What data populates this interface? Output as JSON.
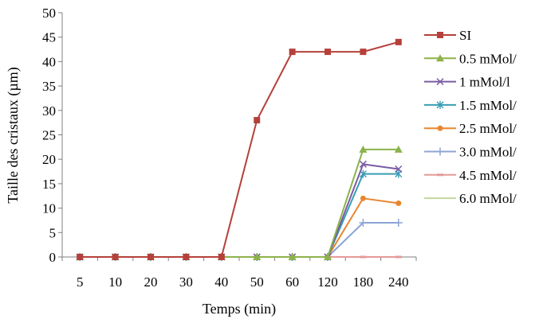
{
  "chart_data": {
    "type": "line",
    "title": "",
    "xlabel": "Temps (min)",
    "ylabel": "Taille des cristaux (µm)",
    "categories": [
      "5",
      "10",
      "20",
      "30",
      "40",
      "50",
      "60",
      "120",
      "180",
      "240"
    ],
    "ylim": [
      0,
      50
    ],
    "yticks": [
      0,
      5,
      10,
      15,
      20,
      25,
      30,
      35,
      40,
      45,
      50
    ],
    "grid": false,
    "legend_position": "right",
    "series": [
      {
        "name": "SI",
        "color": "#b5403a",
        "marker": "square",
        "values": [
          0,
          0,
          0,
          0,
          0,
          28,
          42,
          42,
          42,
          44
        ]
      },
      {
        "name": "0.5 mMol/",
        "color": "#8cb24a",
        "marker": "triangle",
        "values": [
          0,
          0,
          0,
          0,
          0,
          0,
          0,
          0,
          22,
          22
        ]
      },
      {
        "name": "1 mMol/l",
        "color": "#7a5ba3",
        "marker": "x",
        "values": [
          0,
          0,
          0,
          0,
          0,
          0,
          0,
          0,
          19,
          18
        ]
      },
      {
        "name": "1.5 mMol/",
        "color": "#3a9db5",
        "marker": "star",
        "values": [
          0,
          0,
          0,
          0,
          0,
          0,
          0,
          0,
          17,
          17
        ]
      },
      {
        "name": "2.5 mMol/",
        "color": "#e8862f",
        "marker": "circle",
        "values": [
          0,
          0,
          0,
          0,
          0,
          0,
          0,
          0,
          12,
          11
        ]
      },
      {
        "name": "3.0 mMol/",
        "color": "#8da4d4",
        "marker": "plus",
        "values": [
          0,
          0,
          0,
          0,
          0,
          0,
          0,
          0,
          7,
          7
        ]
      },
      {
        "name": "4.5 mMol/",
        "color": "#e59a98",
        "marker": "dash",
        "values": [
          0,
          0,
          0,
          0,
          0,
          0,
          0,
          0,
          0,
          0
        ]
      },
      {
        "name": "6.0 mMol/",
        "color": "#c3d69b",
        "marker": "line",
        "values": [
          0,
          0,
          0,
          0,
          0,
          0,
          0,
          0,
          0,
          0
        ]
      }
    ]
  }
}
